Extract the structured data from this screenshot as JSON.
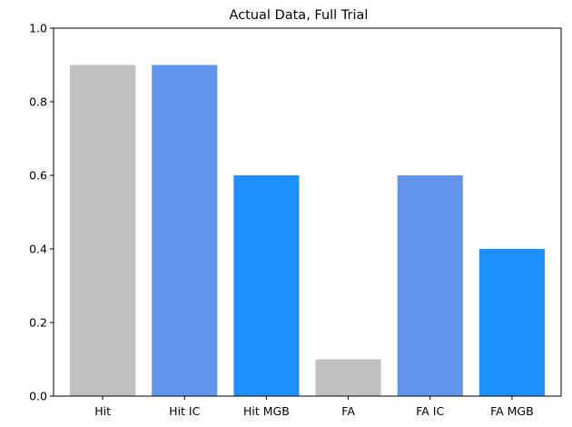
{
  "chart_data": {
    "type": "bar",
    "title": "Actual Data, Full Trial",
    "xlabel": "",
    "ylabel": "",
    "categories": [
      "Hit",
      "Hit IC",
      "Hit MGB",
      "FA",
      "FA IC",
      "FA MGB"
    ],
    "values": [
      0.9,
      0.9,
      0.6,
      0.1,
      0.6,
      0.4
    ],
    "bar_colors": [
      "#c0c0c0",
      "#6495ed",
      "#1e90ff",
      "#c0c0c0",
      "#6495ed",
      "#1e90ff"
    ],
    "ylim": [
      0,
      1.0
    ],
    "yticks": [
      "0.0",
      "0.2",
      "0.4",
      "0.6",
      "0.8",
      "1.0"
    ],
    "grid": false,
    "legend": "none"
  }
}
